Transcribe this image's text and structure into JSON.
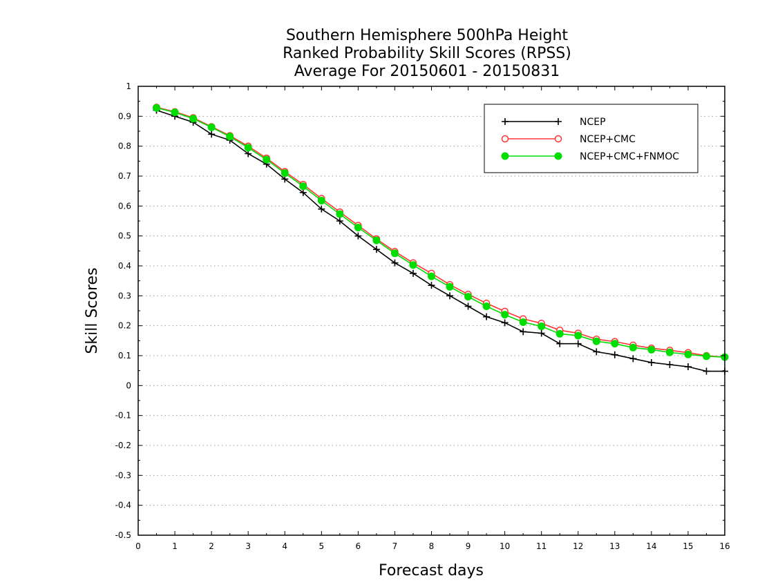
{
  "chart_data": {
    "type": "line",
    "title_lines": [
      "Southern Hemisphere 500hPa Height",
      "Ranked Probability Skill Scores (RPSS)",
      "Average For 20150601 - 20150831"
    ],
    "xlabel": "Forecast days",
    "ylabel": "Skill Scores",
    "xlim": [
      0,
      16
    ],
    "ylim": [
      -0.5,
      1
    ],
    "x_ticks": [
      0,
      1,
      2,
      3,
      4,
      5,
      6,
      7,
      8,
      9,
      10,
      11,
      12,
      13,
      14,
      15,
      16
    ],
    "y_ticks": [
      -0.5,
      -0.4,
      -0.3,
      -0.2,
      -0.1,
      0,
      0.1,
      0.2,
      0.3,
      0.4,
      0.5,
      0.6,
      0.7,
      0.8,
      0.9,
      1
    ],
    "y_tick_labels": [
      "-0.5",
      "-0.4",
      "-0.3",
      "-0.2",
      "-0.1",
      "0",
      "0.1",
      "0.2",
      "0.3",
      "0.4",
      "0.5",
      "0.6",
      "0.7",
      "0.8",
      "0.9",
      "1"
    ],
    "grid": "horizontal dotted",
    "legend_position": "top-right",
    "x": [
      0.5,
      1,
      1.5,
      2,
      2.5,
      3,
      3.5,
      4,
      4.5,
      5,
      5.5,
      6,
      6.5,
      7,
      7.5,
      8,
      8.5,
      9,
      9.5,
      10,
      10.5,
      11,
      11.5,
      12,
      12.5,
      13,
      13.5,
      14,
      14.5,
      15,
      15.5,
      16
    ],
    "series": [
      {
        "name": "NCEP",
        "color": "#000000",
        "marker": "plus",
        "values": [
          0.92,
          0.9,
          0.88,
          0.84,
          0.82,
          0.775,
          0.74,
          0.69,
          0.645,
          0.59,
          0.55,
          0.5,
          0.455,
          0.41,
          0.375,
          0.335,
          0.3,
          0.265,
          0.23,
          0.21,
          0.18,
          0.175,
          0.14,
          0.14,
          0.113,
          0.103,
          0.09,
          0.077,
          0.07,
          0.063,
          0.048,
          0.048
        ]
      },
      {
        "name": "NCEP+CMC",
        "color": "#ff3333",
        "marker": "open-circle",
        "values": [
          0.93,
          0.915,
          0.895,
          0.865,
          0.835,
          0.8,
          0.76,
          0.715,
          0.672,
          0.625,
          0.58,
          0.535,
          0.49,
          0.448,
          0.41,
          0.375,
          0.337,
          0.305,
          0.275,
          0.248,
          0.223,
          0.208,
          0.185,
          0.175,
          0.155,
          0.147,
          0.135,
          0.125,
          0.118,
          0.11,
          0.1,
          0.095
        ]
      },
      {
        "name": "NCEP+CMC+FNMOC",
        "color": "#00dd00",
        "marker": "filled-circle",
        "values": [
          0.928,
          0.913,
          0.892,
          0.863,
          0.832,
          0.795,
          0.755,
          0.71,
          0.666,
          0.618,
          0.573,
          0.528,
          0.485,
          0.442,
          0.403,
          0.365,
          0.33,
          0.297,
          0.265,
          0.237,
          0.212,
          0.198,
          0.173,
          0.167,
          0.148,
          0.14,
          0.127,
          0.12,
          0.111,
          0.104,
          0.098,
          0.095
        ]
      }
    ]
  }
}
